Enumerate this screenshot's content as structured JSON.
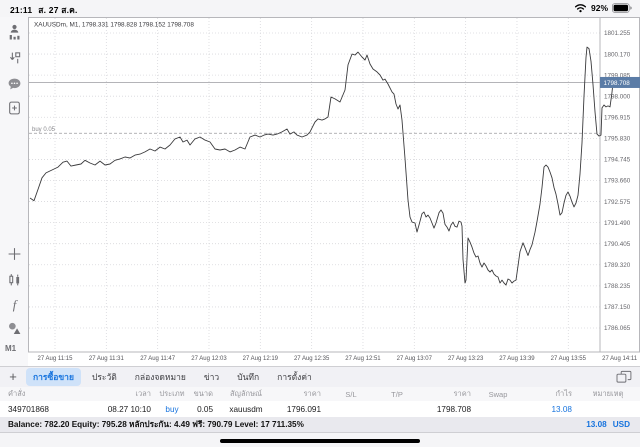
{
  "status_bar": {
    "time": "21:11",
    "date": "ส. 27 ส.ค.",
    "battery_percent": "92%"
  },
  "sidebar": {
    "icons": [
      "account-icon",
      "trade-arrows-icon",
      "chat-icon",
      "new-order-icon",
      "crosshair-icon",
      "candles-icon",
      "indicator-f-icon",
      "objects-icon"
    ],
    "timeframe": "M1"
  },
  "chart": {
    "header": "XAUUSDm, M1, 1798.331 1798.828 1798.152 1798.708",
    "buy_line_label": "buy 0.05",
    "current_price_label": "1798.708"
  },
  "chart_data": {
    "type": "line",
    "title": "XAUUSDm, M1, 1798.331 1798.828 1798.152 1798.708",
    "symbol": "XAUUSDm",
    "timeframe": "M1",
    "ohlc": {
      "open": 1798.331,
      "high": 1798.828,
      "low": 1798.152,
      "close": 1798.708
    },
    "x_labels": [
      "27 Aug 11:15",
      "27 Aug 11:31",
      "27 Aug 11:47",
      "27 Aug 12:03",
      "27 Aug 12:19",
      "27 Aug 12:35",
      "27 Aug 12:51",
      "27 Aug 13:07",
      "27 Aug 13:23",
      "27 Aug 13:39",
      "27 Aug 13:55",
      "27 Aug 14:11"
    ],
    "y_ticks": [
      1801.255,
      1800.17,
      1799.085,
      1798.0,
      1796.915,
      1795.83,
      1794.745,
      1793.66,
      1792.575,
      1791.49,
      1790.405,
      1789.32,
      1788.235,
      1787.15,
      1786.065
    ],
    "ylim": [
      1785.6,
      1801.8
    ],
    "grid": true,
    "current_price": 1798.708,
    "position_line": {
      "price": 1796.091,
      "label": "buy 0.05"
    },
    "series": [
      {
        "name": "XAUUSDm M1",
        "points": [
          [
            30,
            1792.76
          ],
          [
            34,
            1792.62
          ],
          [
            38,
            1793.2
          ],
          [
            42,
            1793.8
          ],
          [
            46,
            1794.05
          ],
          [
            52,
            1794.2
          ],
          [
            58,
            1794.35
          ],
          [
            63,
            1794.6
          ],
          [
            67,
            1794.66
          ],
          [
            71,
            1794.4
          ],
          [
            76,
            1794.46
          ],
          [
            81,
            1794.51
          ],
          [
            85,
            1794.7
          ],
          [
            90,
            1794.56
          ],
          [
            95,
            1794.46
          ],
          [
            100,
            1794.66
          ],
          [
            105,
            1794.46
          ],
          [
            110,
            1794.51
          ],
          [
            115,
            1794.7
          ],
          [
            120,
            1794.77
          ],
          [
            125,
            1794.87
          ],
          [
            130,
            1794.82
          ],
          [
            135,
            1794.97
          ],
          [
            140,
            1795.02
          ],
          [
            145,
            1795.13
          ],
          [
            150,
            1795.28
          ],
          [
            155,
            1795.18
          ],
          [
            160,
            1795.38
          ],
          [
            165,
            1795.28
          ],
          [
            170,
            1795.49
          ],
          [
            175,
            1795.8
          ],
          [
            180,
            1795.9
          ],
          [
            183,
            1795.64
          ],
          [
            187,
            1795.74
          ],
          [
            190,
            1795.49
          ],
          [
            195,
            1795.8
          ],
          [
            200,
            1795.9
          ],
          [
            205,
            1795.74
          ],
          [
            210,
            1795.64
          ],
          [
            215,
            1795.28
          ],
          [
            220,
            1795.23
          ],
          [
            225,
            1795.28
          ],
          [
            230,
            1795.13
          ],
          [
            235,
            1795.23
          ],
          [
            240,
            1795.38
          ],
          [
            245,
            1795.28
          ],
          [
            250,
            1795.9
          ],
          [
            255,
            1796.0
          ],
          [
            260,
            1795.9
          ],
          [
            264,
            1796.0
          ],
          [
            268,
            1796.05
          ],
          [
            273,
            1796.0
          ],
          [
            277,
            1796.05
          ],
          [
            282,
            1796.16
          ],
          [
            287,
            1796.31
          ],
          [
            290,
            1796.05
          ],
          [
            294,
            1796.16
          ],
          [
            297,
            1796.0
          ],
          [
            302,
            1795.9
          ],
          [
            307,
            1796.0
          ],
          [
            310,
            1796.16
          ],
          [
            315,
            1796.67
          ],
          [
            318,
            1796.83
          ],
          [
            322,
            1796.77
          ],
          [
            325,
            1796.83
          ],
          [
            328,
            1796.93
          ],
          [
            331,
            1797.96
          ],
          [
            335,
            1797.86
          ],
          [
            340,
            1797.7
          ],
          [
            345,
            1798.32
          ],
          [
            348,
            1799.61
          ],
          [
            352,
            1800.17
          ],
          [
            355,
            1800.12
          ],
          [
            358,
            1800.27
          ],
          [
            362,
            1800.02
          ],
          [
            365,
            1799.86
          ],
          [
            367,
            1800.12
          ],
          [
            370,
            1799.66
          ],
          [
            373,
            1799.4
          ],
          [
            377,
            1799.25
          ],
          [
            380,
            1799.09
          ],
          [
            383,
            1798.83
          ],
          [
            385,
            1798.88
          ],
          [
            388,
            1798.63
          ],
          [
            392,
            1798.22
          ],
          [
            394,
            1798.11
          ],
          [
            396,
            1797.6
          ],
          [
            398,
            1797.34
          ],
          [
            400,
            1797.55
          ],
          [
            402,
            1796.77
          ],
          [
            405,
            1794.8
          ],
          [
            408,
            1792.65
          ],
          [
            410,
            1791.78
          ],
          [
            412,
            1791.52
          ],
          [
            415,
            1791.47
          ],
          [
            417,
            1791.01
          ],
          [
            419,
            1791.37
          ],
          [
            422,
            1791.95
          ],
          [
            424,
            1792.04
          ],
          [
            426,
            1791.78
          ],
          [
            428,
            1791.88
          ],
          [
            430,
            1791.73
          ],
          [
            432,
            1791.47
          ],
          [
            434,
            1791.21
          ],
          [
            436,
            1791.47
          ],
          [
            439,
            1792.0
          ],
          [
            441,
            1792.14
          ],
          [
            443,
            1791.98
          ],
          [
            445,
            1791.4
          ],
          [
            447,
            1791.26
          ],
          [
            449,
            1791.06
          ],
          [
            451,
            1791.37
          ],
          [
            453,
            1791.52
          ],
          [
            455,
            1791.3
          ],
          [
            457,
            1791.26
          ],
          [
            459,
            1791.57
          ],
          [
            461,
            1791.52
          ],
          [
            462,
            1791.31
          ],
          [
            463,
            1789.6
          ],
          [
            465,
            1788.38
          ],
          [
            466,
            1788.53
          ],
          [
            468,
            1790.7
          ],
          [
            470,
            1790.49
          ],
          [
            472,
            1790.23
          ],
          [
            474,
            1789.92
          ],
          [
            476,
            1789.72
          ],
          [
            478,
            1789.77
          ],
          [
            480,
            1789.41
          ],
          [
            482,
            1789.2
          ],
          [
            484,
            1789.41
          ],
          [
            486,
            1789.26
          ],
          [
            488,
            1789.05
          ],
          [
            490,
            1788.95
          ],
          [
            492,
            1789.05
          ],
          [
            494,
            1788.84
          ],
          [
            496,
            1788.74
          ],
          [
            498,
            1788.69
          ],
          [
            500,
            1788.38
          ],
          [
            502,
            1788.53
          ],
          [
            504,
            1788.38
          ],
          [
            506,
            1788.28
          ],
          [
            508,
            1788.59
          ],
          [
            510,
            1788.53
          ],
          [
            512,
            1788.38
          ],
          [
            514,
            1788.48
          ],
          [
            516,
            1788.53
          ],
          [
            518,
            1789.26
          ],
          [
            520,
            1790.0
          ],
          [
            523,
            1790.45
          ],
          [
            525,
            1790.2
          ],
          [
            528,
            1789.8
          ],
          [
            530,
            1790.1
          ],
          [
            532,
            1790.35
          ],
          [
            535,
            1791.0
          ],
          [
            537,
            1791.55
          ],
          [
            540,
            1792.45
          ],
          [
            542,
            1793.3
          ],
          [
            544,
            1794.35
          ],
          [
            546,
            1794.46
          ],
          [
            548,
            1794.35
          ],
          [
            550,
            1794.1
          ],
          [
            552,
            1793.8
          ],
          [
            554,
            1793.3
          ],
          [
            556,
            1792.95
          ],
          [
            558,
            1792.45
          ],
          [
            560,
            1791.88
          ],
          [
            562,
            1792.0
          ],
          [
            564,
            1792.5
          ],
          [
            566,
            1792.9
          ],
          [
            568,
            1793.07
          ],
          [
            570,
            1792.85
          ],
          [
            572,
            1792.55
          ],
          [
            574,
            1792.3
          ],
          [
            576,
            1792.5
          ],
          [
            578,
            1792.9
          ],
          [
            580,
            1794.0
          ],
          [
            582,
            1795.6
          ],
          [
            584,
            1798.0
          ],
          [
            586,
            1800.0
          ],
          [
            587,
            1800.53
          ],
          [
            589,
            1800.45
          ],
          [
            591,
            1799.8
          ],
          [
            593,
            1798.6
          ],
          [
            595,
            1797.2
          ],
          [
            597,
            1796.05
          ],
          [
            599,
            1795.95
          ],
          [
            601,
            1796.0
          ],
          [
            602,
            1797.4
          ],
          [
            604,
            1797.55
          ],
          [
            606,
            1797.45
          ],
          [
            608,
            1797.5
          ],
          [
            610,
            1797.45
          ],
          [
            612,
            1798.2
          ],
          [
            613,
            1798.71
          ]
        ]
      }
    ]
  },
  "tabbar": {
    "add_label": "+",
    "tabs": [
      {
        "label": "การซื้อขาย",
        "active": true
      },
      {
        "label": "ประวัติ",
        "active": false
      },
      {
        "label": "กล่องจดหมาย",
        "active": false
      },
      {
        "label": "ข่าว",
        "active": false
      },
      {
        "label": "บันทึก",
        "active": false
      },
      {
        "label": "การตั้งค่า",
        "active": false
      }
    ]
  },
  "table": {
    "headers": [
      "คำสั่ง",
      "เวลา",
      "ประเภท",
      "ขนาด",
      "สัญลักษณ์",
      "ราคา",
      "S/L",
      "T/P",
      "ราคา",
      "Swap",
      "กำไร",
      "หมายเหตุ"
    ],
    "rows": [
      [
        "349701868",
        "08.27 10:10",
        "buy",
        "0.05",
        "xauusdm",
        "1796.091",
        "",
        "",
        "1798.708",
        "",
        "13.08",
        ""
      ]
    ]
  },
  "balance_row": {
    "summary": "Balance: 782.20 Equity: 795.28 หลักประกัน: 4.49 ฟรี: 790.79 Level: 17 711.35%",
    "profit": "13.08",
    "currency": "USD"
  },
  "colors": {
    "accent_blue": "#1673de",
    "price_box": "#5b7ca6",
    "chart_line": "#3a3a3c",
    "grid": "#d8d8dc",
    "buy_line": "#9a9a9e"
  }
}
